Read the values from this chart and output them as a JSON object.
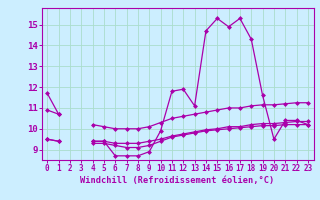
{
  "background_color": "#cceeff",
  "grid_color": "#aaddcc",
  "line_color": "#aa00aa",
  "x_hours": [
    0,
    1,
    2,
    3,
    4,
    5,
    6,
    7,
    8,
    9,
    10,
    11,
    12,
    13,
    14,
    15,
    16,
    17,
    18,
    19,
    20,
    21,
    22,
    23
  ],
  "line1": [
    11.7,
    10.7,
    null,
    null,
    9.4,
    9.4,
    8.7,
    8.7,
    8.7,
    8.9,
    9.9,
    11.8,
    11.9,
    11.1,
    14.7,
    15.3,
    14.9,
    15.3,
    14.3,
    11.6,
    9.5,
    10.4,
    10.4,
    10.2
  ],
  "line2": [
    9.5,
    9.4,
    null,
    null,
    9.3,
    9.3,
    9.2,
    9.1,
    9.1,
    9.2,
    9.4,
    9.6,
    9.7,
    9.8,
    9.9,
    9.95,
    10.0,
    10.05,
    10.1,
    10.15,
    10.15,
    10.2,
    10.2,
    10.2
  ],
  "line3": [
    10.9,
    10.7,
    null,
    null,
    10.2,
    10.1,
    10.0,
    10.0,
    10.0,
    10.1,
    10.3,
    10.5,
    10.6,
    10.7,
    10.8,
    10.9,
    11.0,
    11.0,
    11.1,
    11.15,
    11.15,
    11.2,
    11.25,
    11.25
  ],
  "line4": [
    9.5,
    9.4,
    null,
    null,
    9.4,
    9.4,
    9.3,
    9.3,
    9.3,
    9.4,
    9.5,
    9.65,
    9.75,
    9.85,
    9.95,
    10.0,
    10.1,
    10.1,
    10.2,
    10.25,
    10.25,
    10.3,
    10.35,
    10.35
  ],
  "ylim": [
    8.5,
    15.8
  ],
  "yticks": [
    9,
    10,
    11,
    12,
    13,
    14,
    15
  ],
  "xticks": [
    0,
    1,
    2,
    3,
    4,
    5,
    6,
    7,
    8,
    9,
    10,
    11,
    12,
    13,
    14,
    15,
    16,
    17,
    18,
    19,
    20,
    21,
    22,
    23
  ],
  "xlabel": "Windchill (Refroidissement éolien,°C)"
}
